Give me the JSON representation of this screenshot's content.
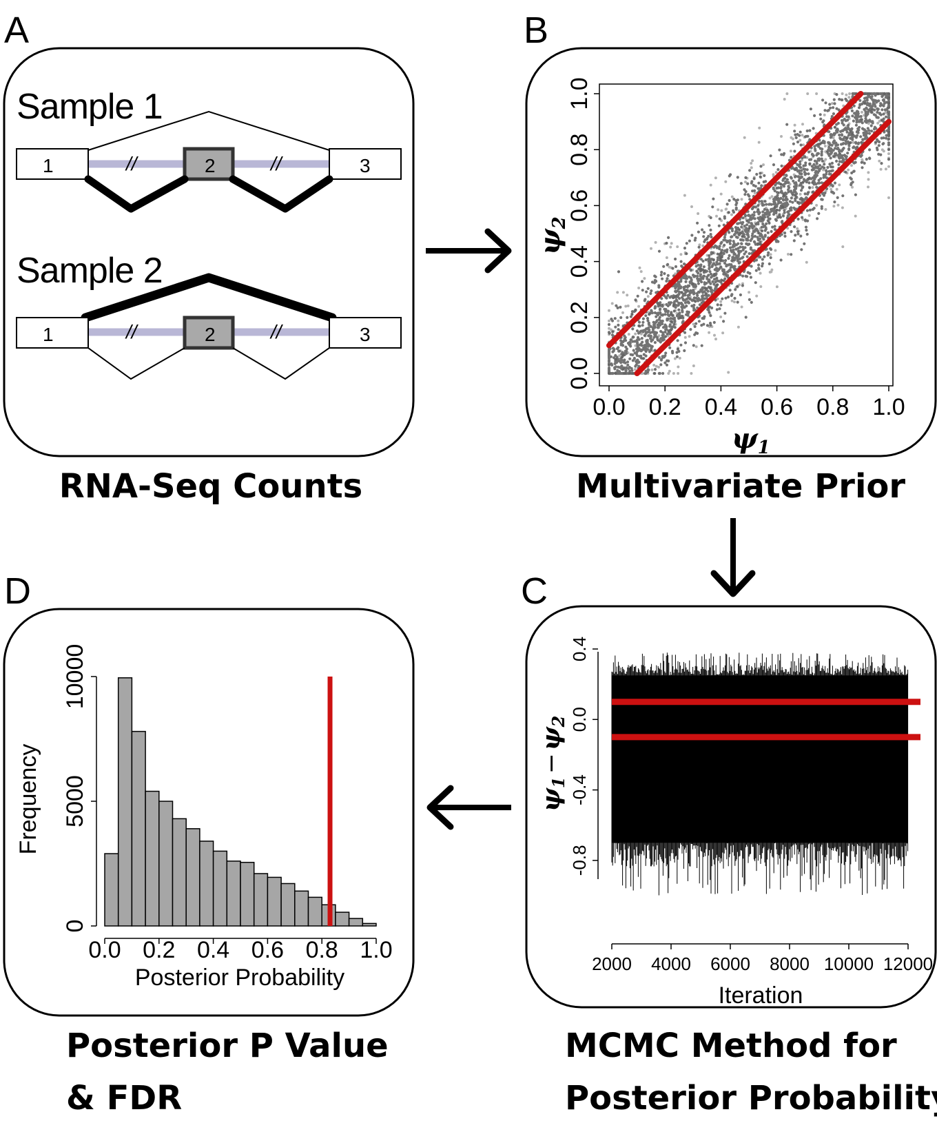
{
  "panels": {
    "a": {
      "letter": "A",
      "caption": "RNA-Seq Counts",
      "sample1_label": "Sample 1",
      "sample2_label": "Sample 2",
      "exon_labels": [
        "1",
        "2",
        "3"
      ],
      "break_mark": "//"
    },
    "b": {
      "letter": "B",
      "caption": "Multivariate Prior",
      "x_ticks": [
        "0.0",
        "0.2",
        "0.4",
        "0.6",
        "0.8",
        "1.0"
      ],
      "y_ticks": [
        "0.0",
        "0.2",
        "0.4",
        "0.6",
        "0.8",
        "1.0"
      ],
      "x_symbol": "ψ",
      "x_sub": "1",
      "y_symbol": "ψ",
      "y_sub": "2"
    },
    "c": {
      "letter": "C",
      "caption_line1": "MCMC Method for",
      "caption_line2": "Posterior Probability",
      "x_ticks": [
        "2000",
        "4000",
        "6000",
        "8000",
        "10000",
        "12000"
      ],
      "y_ticks": [
        "-0.8",
        "-0.4",
        "0.0",
        "0.4"
      ],
      "x_label": "Iteration",
      "y_symbol_a": "ψ",
      "y_sub_a": "1",
      "y_minus": "−",
      "y_symbol_b": "ψ",
      "y_sub_b": "2"
    },
    "d": {
      "letter": "D",
      "caption_line1": "Posterior P Value",
      "caption_line2": "& FDR",
      "x_ticks": [
        "0.0",
        "0.2",
        "0.4",
        "0.6",
        "0.8",
        "1.0"
      ],
      "y_ticks": [
        "0",
        "5000",
        "10000"
      ],
      "x_label": "Posterior Probability",
      "y_label": "Frequency"
    }
  },
  "colors": {
    "threshold_red": "#cc1111",
    "bar_gray": "#a6a6a6",
    "exon2_gray": "#a9a9a9",
    "intron_lavender": "#b9b7d6",
    "points": "#000000"
  },
  "chart_data": [
    {
      "type": "scatter",
      "xlim": [
        0,
        1
      ],
      "ylim": [
        0,
        1
      ],
      "xlabel": "ψ1",
      "ylabel": "ψ2",
      "description_points": "dense cloud along y = x, spread about ±0.2",
      "reference_lines": [
        {
          "x": [
            0.0,
            0.9
          ],
          "y": [
            0.1,
            1.0
          ]
        },
        {
          "x": [
            0.1,
            1.0
          ],
          "y": [
            0.0,
            0.9
          ]
        }
      ]
    },
    {
      "type": "line",
      "xlim": [
        2000,
        12000
      ],
      "ylim": [
        -1.0,
        0.4
      ],
      "xlabel": "Iteration",
      "ylabel": "ψ1 − ψ2",
      "trace_band": {
        "lower_typical": -0.7,
        "upper_typical": 0.25,
        "min": -1.0,
        "max": 0.38
      },
      "reference_lines_y": [
        0.1,
        -0.1
      ]
    },
    {
      "type": "bar",
      "xlabel": "Posterior Probability",
      "ylabel": "Frequency",
      "bin_width": 0.05,
      "bin_starts": [
        0.0,
        0.05,
        0.1,
        0.15,
        0.2,
        0.25,
        0.3,
        0.35,
        0.4,
        0.45,
        0.5,
        0.55,
        0.6,
        0.65,
        0.7,
        0.75,
        0.8,
        0.85,
        0.9,
        0.95
      ],
      "values": [
        2900,
        9950,
        7800,
        5400,
        5000,
        4300,
        3900,
        3400,
        3000,
        2600,
        2550,
        2100,
        1950,
        1700,
        1400,
        1150,
        850,
        550,
        300,
        100
      ],
      "xlim": [
        0,
        1
      ],
      "ylim": [
        0,
        10000
      ],
      "threshold_x": 0.83
    }
  ]
}
